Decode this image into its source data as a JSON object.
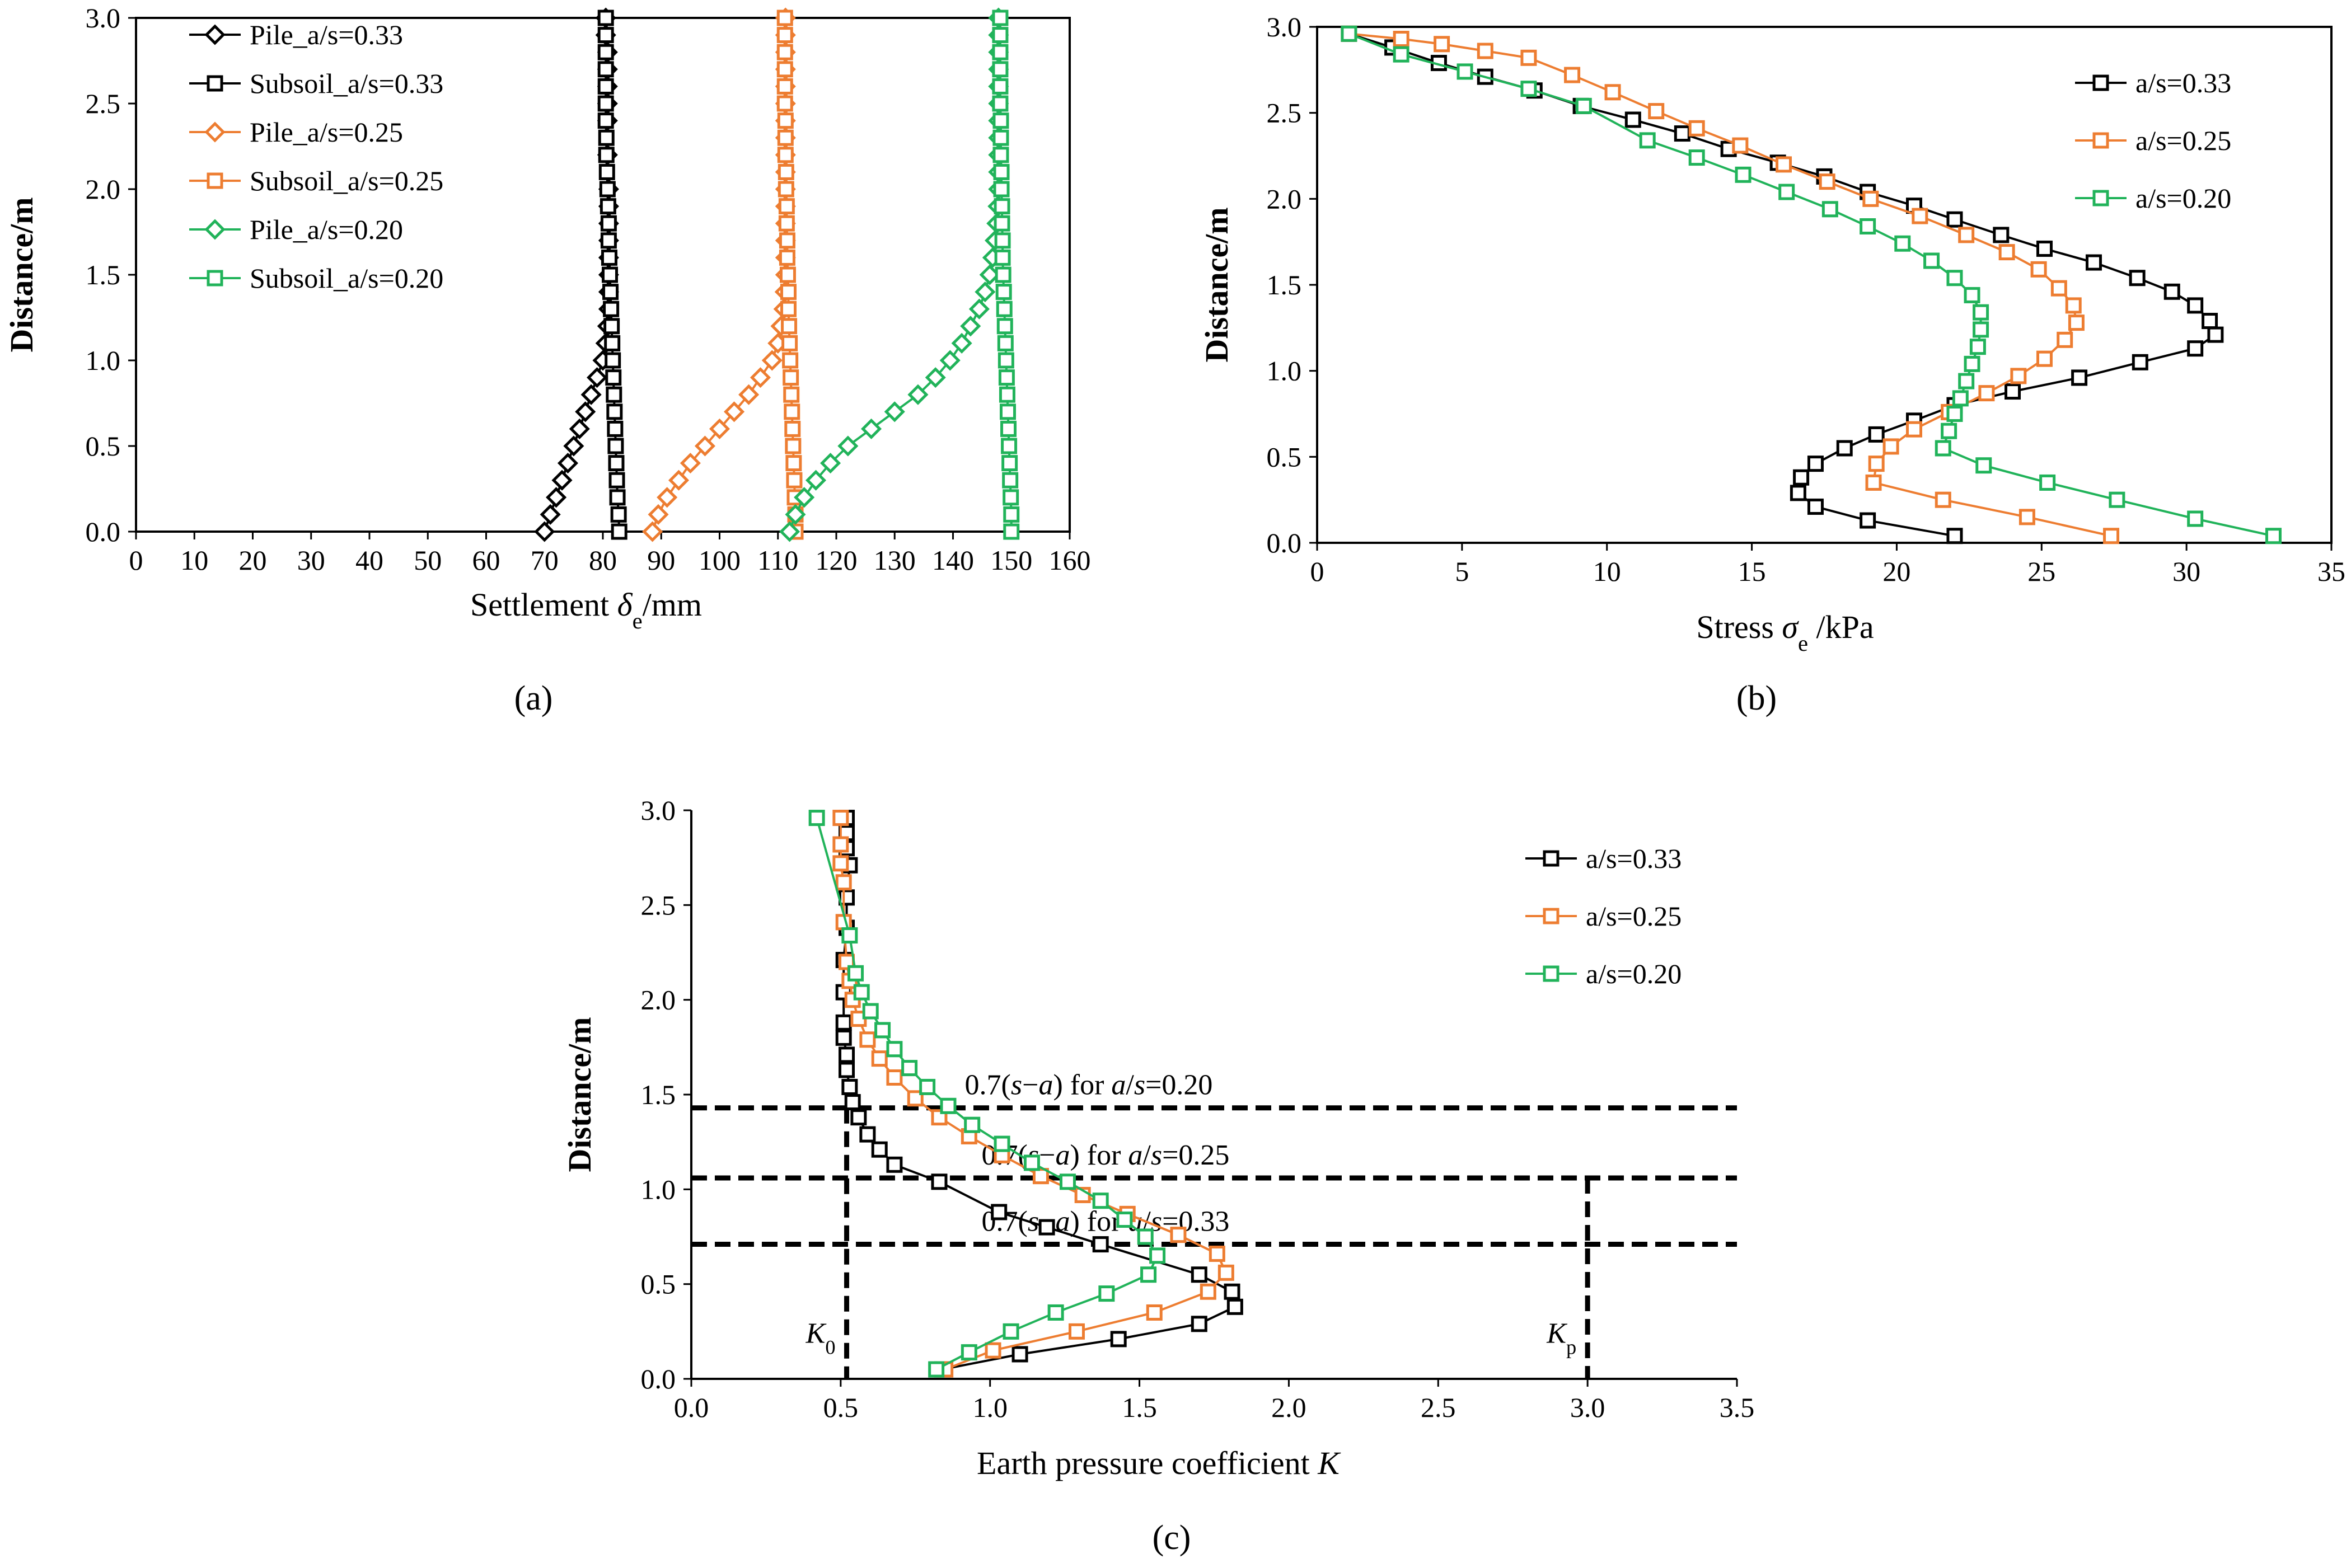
{
  "chart_data": [
    {
      "type": "line",
      "panel_label": "(a)",
      "xlabel": "Settlement δe/mm",
      "ylabel": "Distance/m",
      "xlim": [
        0,
        160
      ],
      "ylim": [
        0,
        3.0
      ],
      "xticks": [
        0,
        10,
        20,
        30,
        40,
        50,
        60,
        70,
        80,
        90,
        100,
        110,
        120,
        130,
        140,
        150,
        160
      ],
      "yticks": [
        0.0,
        0.5,
        1.0,
        1.5,
        2.0,
        2.5,
        3.0
      ],
      "tick_decimals_x": 0,
      "tick_decimals_y": 1,
      "legend_position": "top-left",
      "series": [
        {
          "name": "Pile_a/s=0.33",
          "marker": "diamond",
          "color": "#000000",
          "x": [
            70,
            71,
            72,
            73,
            74,
            75,
            76,
            77,
            78,
            79,
            80,
            80.5,
            80.8,
            81,
            81,
            81,
            81,
            81,
            81,
            81,
            81,
            80.8,
            80.8,
            80.8,
            80.8,
            80.8,
            80.8,
            80.5,
            80.5
          ],
          "y": [
            0.0,
            0.1,
            0.2,
            0.3,
            0.4,
            0.5,
            0.6,
            0.7,
            0.8,
            0.9,
            1.0,
            1.1,
            1.2,
            1.3,
            1.4,
            1.5,
            1.6,
            1.7,
            1.8,
            1.9,
            2.0,
            2.2,
            2.4,
            2.5,
            2.6,
            2.7,
            2.8,
            2.9,
            3.0
          ]
        },
        {
          "name": "Subsoil_a/s=0.33",
          "marker": "square",
          "color": "#000000",
          "x": [
            82.8,
            82.7,
            82.5,
            82.4,
            82.3,
            82.2,
            82.1,
            82,
            81.9,
            81.8,
            81.7,
            81.6,
            81.5,
            81.4,
            81.3,
            81.2,
            81.1,
            81,
            81,
            80.9,
            80.8,
            80.7,
            80.6,
            80.6,
            80.5,
            80.5,
            80.5,
            80.5,
            80.5,
            80.5,
            80.5
          ],
          "y": [
            0.0,
            0.1,
            0.2,
            0.3,
            0.4,
            0.5,
            0.6,
            0.7,
            0.8,
            0.9,
            1.0,
            1.1,
            1.2,
            1.3,
            1.4,
            1.5,
            1.6,
            1.7,
            1.8,
            1.9,
            2.0,
            2.1,
            2.2,
            2.3,
            2.4,
            2.5,
            2.6,
            2.7,
            2.8,
            2.9,
            3.0
          ]
        },
        {
          "name": "Pile_a/s=0.25",
          "marker": "diamond",
          "color": "#ED7D31",
          "x": [
            88.5,
            89.5,
            91,
            93,
            95,
            97.5,
            100,
            102.5,
            105,
            107,
            109,
            110,
            110.5,
            111,
            111.2,
            111.3,
            111.3,
            111.3,
            111.3,
            111.3,
            111.3,
            111.3,
            111.3,
            111.3,
            111.3,
            111.3,
            111.3,
            111.3,
            111.3,
            111.3,
            111.3
          ],
          "y": [
            0.0,
            0.1,
            0.2,
            0.3,
            0.4,
            0.5,
            0.6,
            0.7,
            0.8,
            0.9,
            1.0,
            1.1,
            1.2,
            1.3,
            1.4,
            1.5,
            1.6,
            1.7,
            1.8,
            1.9,
            2.0,
            2.1,
            2.2,
            2.3,
            2.4,
            2.5,
            2.6,
            2.7,
            2.8,
            2.9,
            3.0
          ]
        },
        {
          "name": "Subsoil_a/s=0.25",
          "marker": "square",
          "color": "#ED7D31",
          "x": [
            113,
            113,
            112.9,
            112.8,
            112.7,
            112.6,
            112.5,
            112.4,
            112.3,
            112.2,
            112.1,
            112,
            111.9,
            111.8,
            111.8,
            111.7,
            111.6,
            111.6,
            111.5,
            111.5,
            111.4,
            111.4,
            111.3,
            111.3,
            111.3,
            111.2,
            111.2,
            111.2,
            111.2,
            111.2,
            111.2
          ],
          "y": [
            0.0,
            0.1,
            0.2,
            0.3,
            0.4,
            0.5,
            0.6,
            0.7,
            0.8,
            0.9,
            1.0,
            1.1,
            1.2,
            1.3,
            1.4,
            1.5,
            1.6,
            1.7,
            1.8,
            1.9,
            2.0,
            2.1,
            2.2,
            2.3,
            2.4,
            2.5,
            2.6,
            2.7,
            2.8,
            2.9,
            3.0
          ]
        },
        {
          "name": "Pile_a/s=0.20",
          "marker": "diamond",
          "color": "#21B35A",
          "x": [
            112,
            113,
            114.5,
            116.5,
            119,
            122,
            126,
            130,
            134,
            137,
            139.5,
            141.5,
            143,
            144.5,
            145.5,
            146.3,
            146.8,
            147.2,
            147.5,
            147.7,
            147.8,
            147.8,
            147.8,
            147.8,
            147.8,
            147.8,
            147.8,
            147.8,
            147.8,
            147.8,
            147.8
          ],
          "y": [
            0.0,
            0.1,
            0.2,
            0.3,
            0.4,
            0.5,
            0.6,
            0.7,
            0.8,
            0.9,
            1.0,
            1.1,
            1.2,
            1.3,
            1.4,
            1.5,
            1.6,
            1.7,
            1.8,
            1.9,
            2.0,
            2.1,
            2.2,
            2.3,
            2.4,
            2.5,
            2.6,
            2.7,
            2.8,
            2.9,
            3.0
          ]
        },
        {
          "name": "Subsoil_a/s=0.20",
          "marker": "square",
          "color": "#21B35A",
          "x": [
            150,
            150,
            149.9,
            149.8,
            149.7,
            149.6,
            149.5,
            149.4,
            149.3,
            149.2,
            149.1,
            149,
            148.9,
            148.8,
            148.7,
            148.6,
            148.5,
            148.5,
            148.4,
            148.4,
            148.3,
            148.3,
            148.2,
            148.2,
            148.2,
            148.1,
            148.1,
            148.1,
            148.1,
            148.1,
            148.1
          ],
          "y": [
            0.0,
            0.1,
            0.2,
            0.3,
            0.4,
            0.5,
            0.6,
            0.7,
            0.8,
            0.9,
            1.0,
            1.1,
            1.2,
            1.3,
            1.4,
            1.5,
            1.6,
            1.7,
            1.8,
            1.9,
            2.0,
            2.1,
            2.2,
            2.3,
            2.4,
            2.5,
            2.6,
            2.7,
            2.8,
            2.9,
            3.0
          ]
        }
      ]
    },
    {
      "type": "line",
      "panel_label": "(b)",
      "xlabel": "Stress σe /kPa",
      "ylabel": "Distance/m",
      "xlim": [
        0,
        35
      ],
      "ylim": [
        0,
        3.0
      ],
      "xticks": [
        0,
        5,
        10,
        15,
        20,
        25,
        30,
        35
      ],
      "yticks": [
        0.0,
        0.5,
        1.0,
        1.5,
        2.0,
        2.5,
        3.0
      ],
      "tick_decimals_x": 0,
      "tick_decimals_y": 1,
      "legend_position": "top-right",
      "series": [
        {
          "name": "a/s=0.33",
          "marker": "square",
          "color": "#000000",
          "x": [
            22,
            19,
            17.2,
            16.6,
            16.7,
            17.2,
            18.2,
            19.3,
            20.6,
            22,
            24,
            26.3,
            28.4,
            30.3,
            31,
            30.8,
            30.3,
            29.5,
            28.3,
            26.8,
            25.1,
            23.6,
            22,
            20.6,
            19,
            17.5,
            15.9,
            14.2,
            12.6,
            10.9,
            9.1,
            7.5,
            5.8,
            4.2,
            2.6,
            1.1
          ],
          "y": [
            0.04,
            0.13,
            0.21,
            0.29,
            0.38,
            0.46,
            0.55,
            0.63,
            0.71,
            0.8,
            0.88,
            0.96,
            1.05,
            1.13,
            1.21,
            1.29,
            1.38,
            1.46,
            1.54,
            1.63,
            1.71,
            1.79,
            1.88,
            1.96,
            2.04,
            2.13,
            2.21,
            2.29,
            2.38,
            2.46,
            2.54,
            2.63,
            2.71,
            2.79,
            2.88,
            2.96
          ]
        },
        {
          "name": "a/s=0.25",
          "marker": "square",
          "color": "#ED7D31",
          "x": [
            27.4,
            24.5,
            21.6,
            19.2,
            19.3,
            19.8,
            20.6,
            21.8,
            23.1,
            24.2,
            25.1,
            25.8,
            26.2,
            26.1,
            25.6,
            24.9,
            23.8,
            22.4,
            20.8,
            19.1,
            17.6,
            16.1,
            14.6,
            13.1,
            11.7,
            10.2,
            8.8,
            7.3,
            5.8,
            4.3,
            2.9,
            1.1
          ],
          "y": [
            0.04,
            0.15,
            0.25,
            0.35,
            0.46,
            0.56,
            0.66,
            0.76,
            0.87,
            0.97,
            1.07,
            1.18,
            1.28,
            1.38,
            1.48,
            1.59,
            1.69,
            1.79,
            1.9,
            2.0,
            2.1,
            2.2,
            2.31,
            2.41,
            2.51,
            2.62,
            2.72,
            2.82,
            2.86,
            2.9,
            2.93,
            2.96
          ]
        },
        {
          "name": "a/s=0.20",
          "marker": "square",
          "color": "#21B35A",
          "x": [
            33,
            30.3,
            27.6,
            25.2,
            23,
            21.6,
            21.8,
            22,
            22.2,
            22.4,
            22.6,
            22.8,
            22.9,
            22.9,
            22.6,
            22,
            21.2,
            20.2,
            19,
            17.7,
            16.2,
            14.7,
            13.1,
            11.4,
            9.2,
            7.3,
            5.1,
            2.9,
            1.1
          ],
          "y": [
            0.04,
            0.14,
            0.25,
            0.35,
            0.45,
            0.55,
            0.65,
            0.75,
            0.84,
            0.94,
            1.04,
            1.14,
            1.24,
            1.34,
            1.44,
            1.54,
            1.64,
            1.74,
            1.84,
            1.94,
            2.04,
            2.14,
            2.24,
            2.34,
            2.54,
            2.64,
            2.74,
            2.84,
            2.96
          ]
        }
      ]
    },
    {
      "type": "line",
      "panel_label": "(c)",
      "xlabel": "Earth pressure coefficient K",
      "ylabel": "Distance/m",
      "xlim": [
        0,
        3.5
      ],
      "ylim": [
        0,
        3.0
      ],
      "xticks": [
        0.0,
        0.5,
        1.0,
        1.5,
        2.0,
        2.5,
        3.0,
        3.5
      ],
      "yticks": [
        0.0,
        0.5,
        1.0,
        1.5,
        2.0,
        2.5,
        3.0
      ],
      "tick_decimals_x": 1,
      "tick_decimals_y": 1,
      "legend_position": "top-right",
      "series": [
        {
          "name": "a/s=0.33",
          "marker": "square",
          "color": "#000000",
          "x": [
            0.84,
            1.1,
            1.43,
            1.7,
            1.82,
            1.81,
            1.7,
            1.37,
            1.19,
            1.03,
            0.83,
            0.68,
            0.63,
            0.59,
            0.56,
            0.54,
            0.53,
            0.52,
            0.52,
            0.51,
            0.51,
            0.51,
            0.51,
            0.52,
            0.52,
            0.53,
            0.52,
            0.52,
            0.52
          ],
          "y": [
            0.05,
            0.13,
            0.21,
            0.29,
            0.38,
            0.46,
            0.55,
            0.71,
            0.8,
            0.88,
            1.04,
            1.13,
            1.21,
            1.29,
            1.38,
            1.46,
            1.54,
            1.63,
            1.71,
            1.8,
            1.88,
            2.04,
            2.21,
            2.38,
            2.54,
            2.71,
            2.8,
            2.88,
            2.96
          ]
        },
        {
          "name": "a/s=0.25",
          "marker": "square",
          "color": "#ED7D31",
          "x": [
            0.85,
            1.01,
            1.29,
            1.55,
            1.73,
            1.79,
            1.76,
            1.63,
            1.46,
            1.31,
            1.17,
            1.04,
            0.93,
            0.83,
            0.75,
            0.68,
            0.63,
            0.59,
            0.56,
            0.54,
            0.53,
            0.52,
            0.51,
            0.51,
            0.5,
            0.5,
            0.5
          ],
          "y": [
            0.05,
            0.15,
            0.25,
            0.35,
            0.46,
            0.56,
            0.66,
            0.76,
            0.87,
            0.97,
            1.07,
            1.18,
            1.28,
            1.38,
            1.48,
            1.59,
            1.69,
            1.79,
            1.9,
            2.0,
            2.1,
            2.2,
            2.41,
            2.62,
            2.72,
            2.82,
            2.96
          ]
        },
        {
          "name": "a/s=0.20",
          "marker": "square",
          "color": "#21B35A",
          "x": [
            0.82,
            0.93,
            1.07,
            1.22,
            1.39,
            1.53,
            1.56,
            1.52,
            1.45,
            1.37,
            1.26,
            1.14,
            1.04,
            0.94,
            0.86,
            0.79,
            0.73,
            0.68,
            0.64,
            0.6,
            0.57,
            0.55,
            0.53,
            0.42
          ],
          "y": [
            0.05,
            0.14,
            0.25,
            0.35,
            0.45,
            0.55,
            0.65,
            0.75,
            0.84,
            0.94,
            1.04,
            1.14,
            1.24,
            1.34,
            1.44,
            1.54,
            1.64,
            1.74,
            1.84,
            1.94,
            2.04,
            2.14,
            2.34,
            2.96
          ]
        }
      ],
      "reference_lines": {
        "horizontal": [
          {
            "y": 1.43,
            "label": "0.7(s−a) for a/s=0.20"
          },
          {
            "y": 1.06,
            "label": "0.7(s−a) for a/s=0.25"
          },
          {
            "y": 0.71,
            "label": "0.7(s−a) for a/s=0.33"
          }
        ],
        "vertical": [
          {
            "x": 0.52,
            "label": "K0",
            "y_top": 1.43
          },
          {
            "x": 3.0,
            "label": "Kp",
            "y_top": 1.06
          }
        ]
      }
    }
  ]
}
